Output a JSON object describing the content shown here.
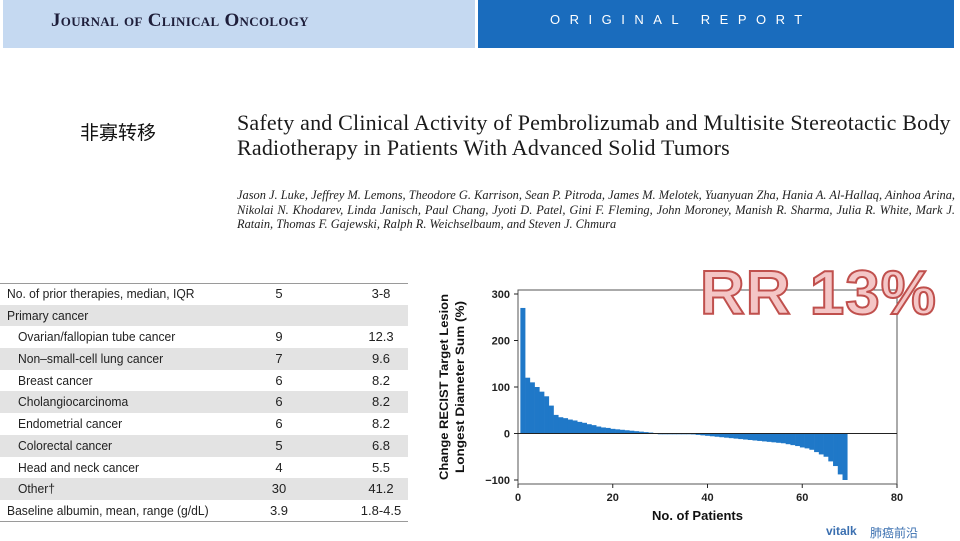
{
  "header": {
    "journal": "Journal of Clinical Oncology",
    "section": "ORIGINAL REPORT"
  },
  "slide_label": "非寡转移",
  "article": {
    "title": "Safety and Clinical Activity of Pembrolizumab and Multisite Stereotactic Body Radiotherapy in Patients With Advanced Solid Tumors",
    "authors": "Jason J. Luke, Jeffrey M. Lemons, Theodore G. Karrison, Sean P. Pitroda, James M. Melotek, Yuanyuan Zha, Hania A. Al-Hallaq, Ainhoa Arina, Nikolai N. Khodarev, Linda Janisch, Paul Chang, Jyoti D. Patel, Gini F. Fleming, John Moroney, Manish R. Sharma, Julia R. White, Mark J. Ratain, Thomas F. Gajewski, Ralph R. Weichselbaum, and Steven J. Chmura"
  },
  "table": {
    "rows": [
      {
        "label": "No. of prior therapies, median, IQR",
        "n": "5",
        "pct": "3-8",
        "indent": false
      },
      {
        "label": "Primary cancer",
        "n": "",
        "pct": "",
        "indent": false
      },
      {
        "label": "Ovarian/fallopian tube cancer",
        "n": "9",
        "pct": "12.3",
        "indent": true
      },
      {
        "label": "Non–small-cell lung cancer",
        "n": "7",
        "pct": "9.6",
        "indent": true
      },
      {
        "label": "Breast cancer",
        "n": "6",
        "pct": "8.2",
        "indent": true
      },
      {
        "label": "Cholangiocarcinoma",
        "n": "6",
        "pct": "8.2",
        "indent": true
      },
      {
        "label": "Endometrial cancer",
        "n": "6",
        "pct": "8.2",
        "indent": true
      },
      {
        "label": "Colorectal cancer",
        "n": "5",
        "pct": "6.8",
        "indent": true
      },
      {
        "label": "Head and neck cancer",
        "n": "4",
        "pct": "5.5",
        "indent": true
      },
      {
        "label": "Other†",
        "n": "30",
        "pct": "41.2",
        "indent": true
      },
      {
        "label": "Baseline albumin, mean, range (g/dL)",
        "n": "3.9",
        "pct": "1.8-4.5",
        "indent": false
      }
    ]
  },
  "response_rate": "RR 13%",
  "chart_data": {
    "type": "bar",
    "xlabel": "No. of Patients",
    "ylabel_line1": "Change RECIST Target Lesion",
    "ylabel_line2": "Longest Diameter Sum (%)",
    "xlim": [
      0,
      80
    ],
    "ylim": [
      -100,
      300
    ],
    "xticks": [
      "0",
      "20",
      "40",
      "60",
      "80"
    ],
    "yticks": [
      "300",
      "200",
      "100",
      "0",
      "−100"
    ],
    "bar_color": "#1f78c8",
    "values": [
      270,
      120,
      110,
      100,
      90,
      80,
      60,
      40,
      35,
      33,
      30,
      28,
      25,
      23,
      20,
      18,
      15,
      13,
      12,
      10,
      9,
      8,
      7,
      6,
      5,
      4,
      3,
      2,
      1,
      0,
      0,
      0,
      0,
      0,
      0,
      -1,
      -2,
      -3,
      -4,
      -5,
      -6,
      -7,
      -8,
      -9,
      -10,
      -11,
      -12,
      -13,
      -14,
      -15,
      -16,
      -17,
      -18,
      -19,
      -20,
      -21,
      -23,
      -25,
      -27,
      -30,
      -32,
      -35,
      -40,
      -45,
      -50,
      -60,
      -70,
      -88,
      -100
    ]
  },
  "footer": {
    "brand": "vitalk",
    "brand_cn": "肺癌前沿"
  }
}
